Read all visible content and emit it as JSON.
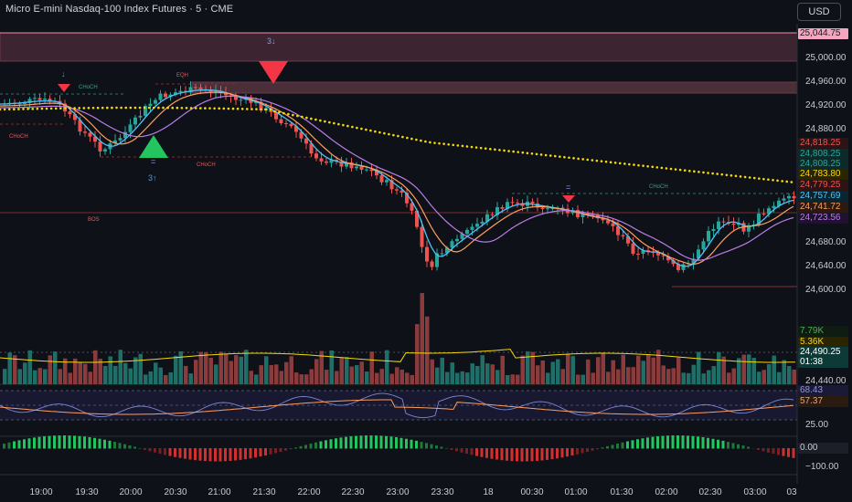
{
  "header": {
    "title": "Micro E-mini Nasdaq-100 Index Futures · 5 · CME",
    "currency_button": "USD"
  },
  "price_axis": {
    "ticks": [
      "25,000.00",
      "24,960.00",
      "24,920.00",
      "24,880.00",
      "24,680.00",
      "24,640.00",
      "24,600.00",
      "24,440.00",
      "25.00",
      "−100.00"
    ]
  },
  "badges": [
    {
      "text": "25,044.75",
      "bg": "#f4a5c0",
      "fg": "#1a1a1a"
    },
    {
      "text": "24,818.25",
      "bg": "#2a1416",
      "fg": "#ef5350"
    },
    {
      "text": "24,808.25",
      "bg": "#0d2a2a",
      "fg": "#26a69a"
    },
    {
      "text": "24,808.25",
      "bg": "#0d2a2a",
      "fg": "#26a69a"
    },
    {
      "text": "24,783.80",
      "bg": "#2a2400",
      "fg": "#f5d90a"
    },
    {
      "text": "24,779.25",
      "bg": "#2a1416",
      "fg": "#ef5350"
    },
    {
      "text": "24,757.69",
      "bg": "#0a2430",
      "fg": "#4fc3f7"
    },
    {
      "text": "24,741.72",
      "bg": "#2a1a10",
      "fg": "#ff9e5e"
    },
    {
      "text": "24,723.56",
      "bg": "#1e1230",
      "fg": "#b87ee8"
    },
    {
      "text": "7.79K",
      "bg": "#0f1c12",
      "fg": "#4caf50"
    },
    {
      "text": "5.36K",
      "bg": "#2a2400",
      "fg": "#f5d90a"
    },
    {
      "text": "24,490.25",
      "bg": "#0d3a36",
      "fg": "#ffffff"
    },
    {
      "text": "01:38",
      "bg": "#0d3a36",
      "fg": "#ffffff"
    },
    {
      "text": "68.43",
      "bg": "#1a1a36",
      "fg": "#8f96e6"
    },
    {
      "text": "57.37",
      "bg": "#2a1a10",
      "fg": "#ff9e5e"
    },
    {
      "text": "0.00",
      "bg": "#1c1f27",
      "fg": "#c9ccd6"
    }
  ],
  "time_axis": [
    "19:00",
    "19:30",
    "20:00",
    "20:30",
    "21:00",
    "21:30",
    "22:00",
    "22:30",
    "23:00",
    "23:30",
    "18",
    "00:30",
    "01:00",
    "01:30",
    "02:00",
    "02:30",
    "03:00",
    "03"
  ],
  "annotations": {
    "three_down": "3↓",
    "three_up": "3↑",
    "bos": "BOS",
    "choch": "CHoCH",
    "eqh": "EQH",
    "eq": "=",
    "arrow_down": "↓"
  },
  "colors": {
    "bg": "#0f1118",
    "up": "#26a69a",
    "down": "#ef5350",
    "ema_fast": "#4fc3f7",
    "ema_mid": "#ff9e5e",
    "ema_slow": "#b87ee8",
    "trend_dots": "#f5d90a",
    "zone": "#4a2a3a"
  }
}
